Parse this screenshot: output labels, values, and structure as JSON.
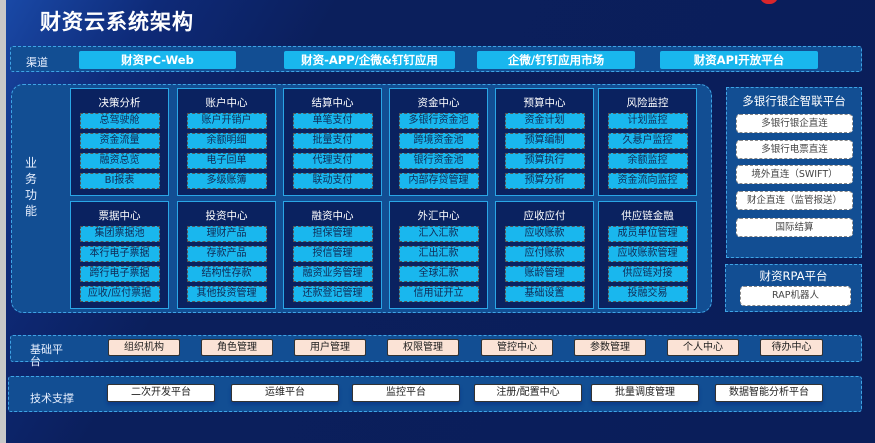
{
  "title": "财资云系统架构",
  "channel": {
    "label": "渠道",
    "items": [
      "财资PC-Web",
      "财资-APP/企微&钉钉应用",
      "企微/钉钉应用市场",
      "财资API开放平台"
    ]
  },
  "business": {
    "label": "业务功能",
    "modules": [
      {
        "title": "决策分析",
        "items": [
          "总驾驶舱",
          "资金流量",
          "融资总览",
          "BI报表"
        ]
      },
      {
        "title": "账户中心",
        "items": [
          "账户开销户",
          "余额明细",
          "电子回单",
          "多级账簿"
        ]
      },
      {
        "title": "结算中心",
        "items": [
          "单笔支付",
          "批量支付",
          "代理支付",
          "联动支付"
        ]
      },
      {
        "title": "资金中心",
        "items": [
          "多银行资金池",
          "跨境资金池",
          "银行资金池",
          "内部存贷管理"
        ]
      },
      {
        "title": "预算中心",
        "items": [
          "资金计划",
          "预算编制",
          "预算执行",
          "预算分析"
        ]
      },
      {
        "title": "风险监控",
        "items": [
          "计划监控",
          "久悬户监控",
          "余额监控",
          "资金流向监控"
        ]
      },
      {
        "title": "票据中心",
        "items": [
          "集团票据池",
          "本行电子票据",
          "跨行电子票据",
          "应收/应付票据"
        ]
      },
      {
        "title": "投资中心",
        "items": [
          "理财产品",
          "存款产品",
          "结构性存款",
          "其他投资管理"
        ]
      },
      {
        "title": "融资中心",
        "items": [
          "担保管理",
          "授信管理",
          "融资业务管理",
          "还款登记管理"
        ]
      },
      {
        "title": "外汇中心",
        "items": [
          "汇入汇款",
          "汇出汇款",
          "全球汇款",
          "信用证开立"
        ]
      },
      {
        "title": "应收应付",
        "items": [
          "应收账款",
          "应付账款",
          "账龄管理",
          "基础设置"
        ]
      },
      {
        "title": "供应链金融",
        "items": [
          "成员单位管理",
          "应收账款管理",
          "供应链对接",
          "投融交易"
        ]
      }
    ]
  },
  "bank_platform": {
    "title": "多银行银企智联平台",
    "items": [
      "多银行银企直连",
      "多银行电票直连",
      "境外直连（SWIFT）",
      "财企直连（监管报送）",
      "国际结算"
    ]
  },
  "rpa_platform": {
    "title": "财资RPA平台",
    "items": [
      "RAP机器人"
    ]
  },
  "base_platform": {
    "label": "基础平台",
    "items": [
      "组织机构",
      "角色管理",
      "用户管理",
      "权限管理",
      "管控中心",
      "参数管理",
      "个人中心",
      "待办中心"
    ]
  },
  "tech_support": {
    "label": "技术支撑",
    "items": [
      "二次开发平台",
      "运维平台",
      "监控平台",
      "注册/配置中心",
      "批量调度管理",
      "数据智能分析平台"
    ]
  }
}
